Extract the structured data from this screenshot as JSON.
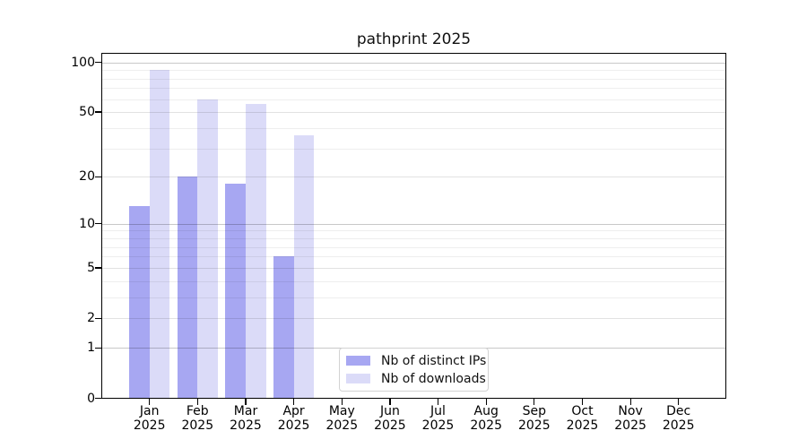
{
  "title": "pathprint 2025",
  "x_axis": {
    "months": [
      "Jan",
      "Feb",
      "Mar",
      "Apr",
      "May",
      "Jun",
      "Jul",
      "Aug",
      "Sep",
      "Oct",
      "Nov",
      "Dec"
    ],
    "year": "2025"
  },
  "y_axis": {
    "tick_labels": [
      "100",
      "50",
      "20",
      "10",
      "5",
      "2",
      "1",
      "0"
    ],
    "tick_values": [
      100,
      50,
      20,
      10,
      5,
      2,
      1,
      0
    ]
  },
  "gridlines": {
    "strong": [
      100,
      10,
      1
    ],
    "mid": [
      50,
      20,
      5,
      2
    ],
    "minor": [
      90,
      80,
      70,
      60,
      40,
      30,
      9,
      8,
      7,
      6,
      4,
      3
    ]
  },
  "legend": {
    "items": [
      {
        "label": "Nb of distinct IPs",
        "color": "#a7a7f2"
      },
      {
        "label": "Nb of downloads",
        "color": "#dbdbf8"
      }
    ]
  },
  "chart_data": {
    "type": "bar",
    "title": "pathprint 2025",
    "categories": [
      "Jan 2025",
      "Feb 2025",
      "Mar 2025",
      "Apr 2025",
      "May 2025",
      "Jun 2025",
      "Jul 2025",
      "Aug 2025",
      "Sep 2025",
      "Oct 2025",
      "Nov 2025",
      "Dec 2025"
    ],
    "series": [
      {
        "name": "Nb of distinct IPs",
        "color": "#a7a7f2",
        "values": [
          13,
          20,
          18,
          6,
          null,
          null,
          null,
          null,
          null,
          null,
          null,
          null
        ]
      },
      {
        "name": "Nb of downloads",
        "color": "#dbdbf8",
        "values": [
          90,
          60,
          56,
          36,
          null,
          null,
          null,
          null,
          null,
          null,
          null,
          null
        ]
      }
    ],
    "yscale": "log1p",
    "ylim": [
      0,
      115
    ],
    "y_ticks": [
      0,
      1,
      2,
      5,
      10,
      20,
      50,
      100
    ],
    "xlabel": "",
    "ylabel": "",
    "grid": "horizontal, major and minor",
    "legend_position": "bottom-center inside plot"
  }
}
